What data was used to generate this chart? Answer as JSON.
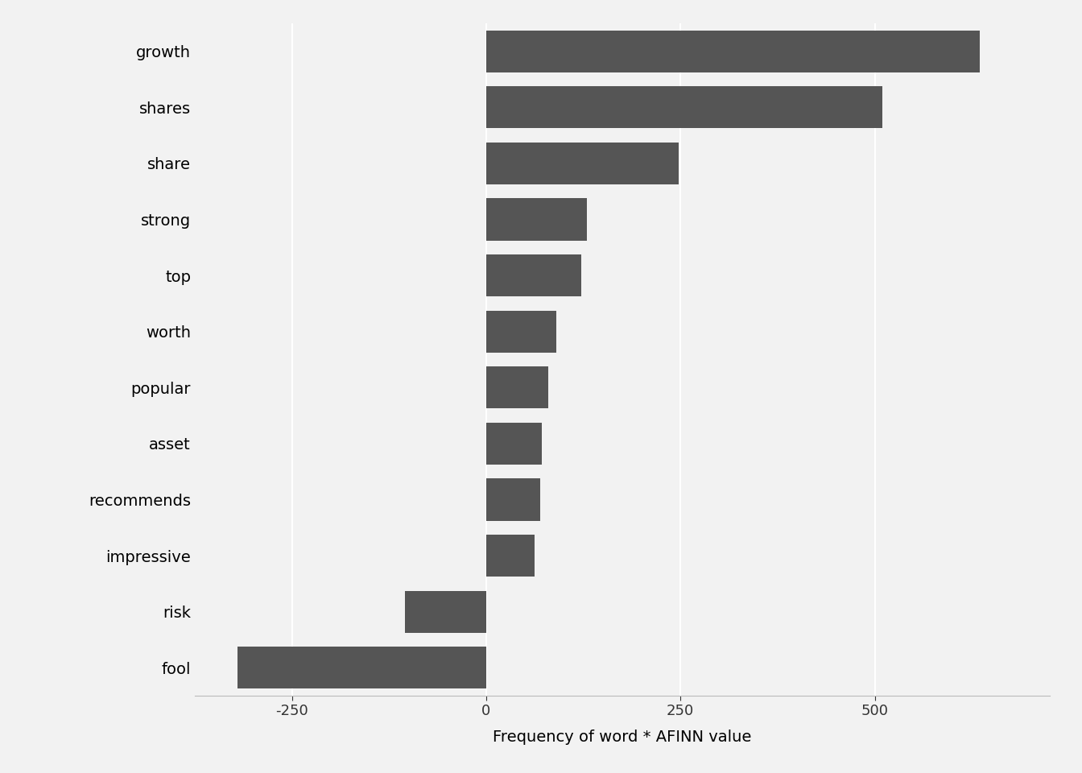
{
  "words": [
    "growth",
    "shares",
    "share",
    "strong",
    "top",
    "worth",
    "popular",
    "asset",
    "recommends",
    "impressive",
    "risk",
    "fool"
  ],
  "values": [
    635,
    510,
    248,
    130,
    122,
    90,
    80,
    72,
    70,
    62,
    -105,
    -320
  ],
  "bar_color": "#555555",
  "xlabel": "Frequency of word * AFINN value",
  "xlim": [
    -375,
    725
  ],
  "xticks": [
    -250,
    0,
    250,
    500
  ],
  "background_color": "#f2f2f2",
  "grid_color": "#ffffff",
  "bar_height": 0.75,
  "label_fontsize": 14,
  "tick_fontsize": 13
}
